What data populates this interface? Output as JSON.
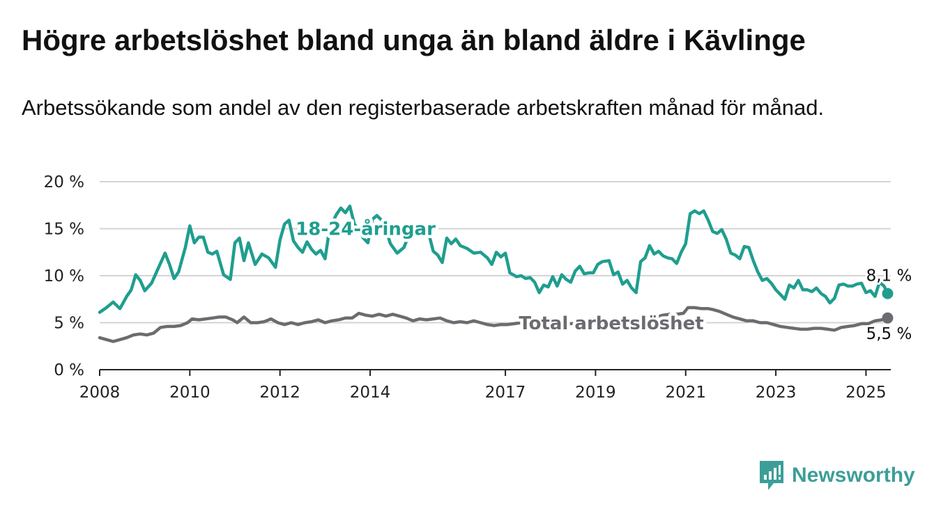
{
  "title": "Högre arbetslöshet bland unga än bland äldre i Kävlinge",
  "subtitle": "Arbetssökande som andel av den registerbaserade arbetskraften månad för månad.",
  "brand": {
    "name": "Newsworthy",
    "icon": "newsworthy-logo-icon",
    "color": "#3d9e98"
  },
  "chart_data": {
    "type": "line",
    "title": "Högre arbetslöshet bland unga än bland äldre i Kävlinge",
    "subtitle": "Arbetssökande som andel av den registerbaserade arbetskraften månad för månad.",
    "xlabel": "",
    "ylabel": "",
    "xlim": [
      2008,
      2025.55
    ],
    "ylim": [
      0,
      20
    ],
    "yticks": [
      0,
      5,
      10,
      15,
      20
    ],
    "ytick_labels": [
      "0 %",
      "5 %",
      "10 %",
      "15 %",
      "20 %"
    ],
    "xticks": [
      2008,
      2010,
      2012,
      2014,
      2017,
      2019,
      2021,
      2023,
      2025
    ],
    "xtick_labels": [
      "2008",
      "2010",
      "2012",
      "2014",
      "2017",
      "2019",
      "2021",
      "2023",
      "2025"
    ],
    "grid": "horizontal",
    "series": [
      {
        "name": "18-24-åringar",
        "color": "#1f9e8f",
        "end_label": "8,1 %",
        "end_value": 8.1,
        "points": [
          [
            2008.0,
            6.1
          ],
          [
            2008.15,
            6.6
          ],
          [
            2008.3,
            7.2
          ],
          [
            2008.45,
            6.5
          ],
          [
            2008.6,
            7.8
          ],
          [
            2008.7,
            8.5
          ],
          [
            2008.8,
            10.1
          ],
          [
            2008.9,
            9.5
          ],
          [
            2009.0,
            8.4
          ],
          [
            2009.15,
            9.2
          ],
          [
            2009.3,
            10.8
          ],
          [
            2009.45,
            12.4
          ],
          [
            2009.55,
            11.2
          ],
          [
            2009.65,
            9.7
          ],
          [
            2009.75,
            10.4
          ],
          [
            2009.9,
            13.0
          ],
          [
            2010.0,
            15.3
          ],
          [
            2010.1,
            13.5
          ],
          [
            2010.2,
            14.1
          ],
          [
            2010.3,
            14.1
          ],
          [
            2010.4,
            12.5
          ],
          [
            2010.5,
            12.3
          ],
          [
            2010.6,
            12.6
          ],
          [
            2010.75,
            10.1
          ],
          [
            2010.9,
            9.6
          ],
          [
            2011.0,
            13.5
          ],
          [
            2011.1,
            14.0
          ],
          [
            2011.2,
            11.6
          ],
          [
            2011.3,
            13.5
          ],
          [
            2011.45,
            11.2
          ],
          [
            2011.6,
            12.3
          ],
          [
            2011.75,
            11.9
          ],
          [
            2011.9,
            10.9
          ],
          [
            2012.0,
            13.8
          ],
          [
            2012.1,
            15.5
          ],
          [
            2012.2,
            15.9
          ],
          [
            2012.3,
            13.7
          ],
          [
            2012.4,
            13.0
          ],
          [
            2012.5,
            12.5
          ],
          [
            2012.6,
            13.6
          ],
          [
            2012.7,
            12.8
          ],
          [
            2012.8,
            12.3
          ],
          [
            2012.9,
            12.7
          ],
          [
            2013.0,
            11.8
          ],
          [
            2013.1,
            15.0
          ],
          [
            2013.25,
            16.5
          ],
          [
            2013.35,
            17.2
          ],
          [
            2013.45,
            16.7
          ],
          [
            2013.55,
            17.4
          ],
          [
            2013.65,
            15.5
          ],
          [
            2013.75,
            14.8
          ],
          [
            2013.85,
            14.0
          ],
          [
            2013.95,
            13.5
          ],
          [
            2014.05,
            16.0
          ],
          [
            2014.15,
            16.4
          ],
          [
            2014.3,
            15.7
          ],
          [
            2014.45,
            13.4
          ],
          [
            2014.6,
            12.4
          ],
          [
            2014.75,
            13.0
          ],
          [
            2014.9,
            14.8
          ],
          [
            2015.05,
            14.5
          ],
          [
            2015.15,
            14.7
          ],
          [
            2015.3,
            14.5
          ],
          [
            2015.4,
            12.6
          ],
          [
            2015.5,
            12.2
          ],
          [
            2015.6,
            11.4
          ],
          [
            2015.7,
            14.0
          ],
          [
            2015.8,
            13.4
          ],
          [
            2015.9,
            13.9
          ],
          [
            2016.0,
            13.2
          ],
          [
            2016.15,
            12.9
          ],
          [
            2016.3,
            12.4
          ],
          [
            2016.45,
            12.5
          ],
          [
            2016.6,
            11.9
          ],
          [
            2016.7,
            11.2
          ],
          [
            2016.8,
            12.5
          ],
          [
            2016.9,
            12.0
          ],
          [
            2017.0,
            12.4
          ],
          [
            2017.1,
            10.3
          ],
          [
            2017.25,
            9.9
          ],
          [
            2017.35,
            10.0
          ],
          [
            2017.45,
            9.7
          ],
          [
            2017.55,
            9.8
          ],
          [
            2017.65,
            9.3
          ],
          [
            2017.75,
            8.2
          ],
          [
            2017.85,
            9.0
          ],
          [
            2017.95,
            8.8
          ],
          [
            2018.05,
            9.9
          ],
          [
            2018.15,
            8.9
          ],
          [
            2018.25,
            10.1
          ],
          [
            2018.35,
            9.6
          ],
          [
            2018.45,
            9.3
          ],
          [
            2018.55,
            10.5
          ],
          [
            2018.65,
            11.0
          ],
          [
            2018.75,
            10.2
          ],
          [
            2018.85,
            10.3
          ],
          [
            2018.95,
            10.3
          ],
          [
            2019.05,
            11.2
          ],
          [
            2019.15,
            11.5
          ],
          [
            2019.3,
            11.6
          ],
          [
            2019.4,
            10.1
          ],
          [
            2019.5,
            10.4
          ],
          [
            2019.6,
            9.1
          ],
          [
            2019.7,
            9.5
          ],
          [
            2019.8,
            8.7
          ],
          [
            2019.9,
            8.2
          ],
          [
            2020.0,
            11.5
          ],
          [
            2020.1,
            11.9
          ],
          [
            2020.2,
            13.2
          ],
          [
            2020.3,
            12.3
          ],
          [
            2020.4,
            12.6
          ],
          [
            2020.5,
            12.1
          ],
          [
            2020.6,
            11.9
          ],
          [
            2020.7,
            11.8
          ],
          [
            2020.8,
            11.3
          ],
          [
            2020.9,
            12.5
          ],
          [
            2021.0,
            13.4
          ],
          [
            2021.1,
            16.6
          ],
          [
            2021.2,
            16.9
          ],
          [
            2021.3,
            16.6
          ],
          [
            2021.4,
            16.9
          ],
          [
            2021.5,
            15.9
          ],
          [
            2021.6,
            14.7
          ],
          [
            2021.7,
            14.5
          ],
          [
            2021.8,
            14.9
          ],
          [
            2021.9,
            13.9
          ],
          [
            2022.0,
            12.4
          ],
          [
            2022.1,
            12.2
          ],
          [
            2022.2,
            11.8
          ],
          [
            2022.3,
            13.1
          ],
          [
            2022.4,
            13.0
          ],
          [
            2022.5,
            11.6
          ],
          [
            2022.6,
            10.4
          ],
          [
            2022.7,
            9.5
          ],
          [
            2022.8,
            9.7
          ],
          [
            2022.9,
            9.2
          ],
          [
            2023.0,
            8.5
          ],
          [
            2023.1,
            8.0
          ],
          [
            2023.2,
            7.5
          ],
          [
            2023.3,
            9.0
          ],
          [
            2023.4,
            8.7
          ],
          [
            2023.5,
            9.5
          ],
          [
            2023.6,
            8.5
          ],
          [
            2023.7,
            8.5
          ],
          [
            2023.8,
            8.3
          ],
          [
            2023.9,
            8.7
          ],
          [
            2024.0,
            8.1
          ],
          [
            2024.1,
            7.8
          ],
          [
            2024.2,
            7.1
          ],
          [
            2024.3,
            7.6
          ],
          [
            2024.4,
            9.0
          ],
          [
            2024.5,
            9.1
          ],
          [
            2024.6,
            8.9
          ],
          [
            2024.7,
            8.9
          ],
          [
            2024.8,
            9.1
          ],
          [
            2024.9,
            9.2
          ],
          [
            2025.0,
            8.2
          ],
          [
            2025.1,
            8.4
          ],
          [
            2025.2,
            7.8
          ],
          [
            2025.3,
            9.3
          ],
          [
            2025.4,
            8.9
          ],
          [
            2025.48,
            8.1
          ]
        ]
      },
      {
        "name": "Total arbetslöshet",
        "color": "#6c6b70",
        "end_label": "5,5 %",
        "end_value": 5.5,
        "points": [
          [
            2008.0,
            3.4
          ],
          [
            2008.15,
            3.2
          ],
          [
            2008.3,
            3.0
          ],
          [
            2008.45,
            3.2
          ],
          [
            2008.6,
            3.4
          ],
          [
            2008.75,
            3.7
          ],
          [
            2008.9,
            3.8
          ],
          [
            2009.05,
            3.7
          ],
          [
            2009.2,
            3.9
          ],
          [
            2009.35,
            4.5
          ],
          [
            2009.5,
            4.6
          ],
          [
            2009.65,
            4.6
          ],
          [
            2009.8,
            4.7
          ],
          [
            2009.95,
            5.0
          ],
          [
            2010.05,
            5.4
          ],
          [
            2010.2,
            5.3
          ],
          [
            2010.35,
            5.4
          ],
          [
            2010.5,
            5.5
          ],
          [
            2010.65,
            5.6
          ],
          [
            2010.8,
            5.6
          ],
          [
            2010.95,
            5.3
          ],
          [
            2011.05,
            5.0
          ],
          [
            2011.2,
            5.6
          ],
          [
            2011.35,
            5.0
          ],
          [
            2011.5,
            5.0
          ],
          [
            2011.65,
            5.1
          ],
          [
            2011.8,
            5.4
          ],
          [
            2011.95,
            5.0
          ],
          [
            2012.1,
            4.8
          ],
          [
            2012.25,
            5.0
          ],
          [
            2012.4,
            4.8
          ],
          [
            2012.55,
            5.0
          ],
          [
            2012.7,
            5.1
          ],
          [
            2012.85,
            5.3
          ],
          [
            2013.0,
            5.0
          ],
          [
            2013.15,
            5.2
          ],
          [
            2013.3,
            5.3
          ],
          [
            2013.45,
            5.5
          ],
          [
            2013.6,
            5.5
          ],
          [
            2013.75,
            6.0
          ],
          [
            2013.9,
            5.8
          ],
          [
            2014.05,
            5.7
          ],
          [
            2014.2,
            5.9
          ],
          [
            2014.35,
            5.7
          ],
          [
            2014.5,
            5.9
          ],
          [
            2014.65,
            5.7
          ],
          [
            2014.8,
            5.5
          ],
          [
            2014.95,
            5.2
          ],
          [
            2015.1,
            5.4
          ],
          [
            2015.25,
            5.3
          ],
          [
            2015.4,
            5.4
          ],
          [
            2015.55,
            5.5
          ],
          [
            2015.7,
            5.2
          ],
          [
            2015.85,
            5.0
          ],
          [
            2016.0,
            5.1
          ],
          [
            2016.15,
            5.0
          ],
          [
            2016.3,
            5.2
          ],
          [
            2016.45,
            5.0
          ],
          [
            2016.6,
            4.8
          ],
          [
            2016.75,
            4.7
          ],
          [
            2016.9,
            4.8
          ],
          [
            2017.05,
            4.8
          ],
          [
            2017.2,
            4.9
          ],
          [
            2017.35,
            5.0
          ],
          [
            2017.5,
            5.0
          ],
          [
            2017.65,
            5.0
          ],
          [
            2017.8,
            4.9
          ],
          [
            2017.95,
            4.9
          ],
          [
            2018.1,
            5.0
          ],
          [
            2018.25,
            4.9
          ],
          [
            2018.4,
            4.9
          ],
          [
            2018.55,
            4.9
          ],
          [
            2018.7,
            5.0
          ],
          [
            2018.85,
            4.9
          ],
          [
            2019.0,
            4.9
          ],
          [
            2019.15,
            5.0
          ],
          [
            2019.3,
            5.0
          ],
          [
            2019.45,
            5.1
          ],
          [
            2019.6,
            5.0
          ],
          [
            2019.75,
            5.0
          ],
          [
            2019.9,
            4.9
          ],
          [
            2020.05,
            5.1
          ],
          [
            2020.2,
            5.4
          ],
          [
            2020.35,
            5.6
          ],
          [
            2020.5,
            5.8
          ],
          [
            2020.65,
            5.9
          ],
          [
            2020.8,
            5.9
          ],
          [
            2020.95,
            6.0
          ],
          [
            2021.05,
            6.6
          ],
          [
            2021.2,
            6.6
          ],
          [
            2021.35,
            6.5
          ],
          [
            2021.5,
            6.5
          ],
          [
            2021.6,
            6.4
          ],
          [
            2021.75,
            6.2
          ],
          [
            2021.9,
            5.9
          ],
          [
            2022.05,
            5.6
          ],
          [
            2022.2,
            5.4
          ],
          [
            2022.35,
            5.2
          ],
          [
            2022.5,
            5.2
          ],
          [
            2022.65,
            5.0
          ],
          [
            2022.8,
            5.0
          ],
          [
            2022.95,
            4.8
          ],
          [
            2023.1,
            4.6
          ],
          [
            2023.25,
            4.5
          ],
          [
            2023.4,
            4.4
          ],
          [
            2023.55,
            4.3
          ],
          [
            2023.7,
            4.3
          ],
          [
            2023.85,
            4.4
          ],
          [
            2024.0,
            4.4
          ],
          [
            2024.15,
            4.3
          ],
          [
            2024.3,
            4.2
          ],
          [
            2024.45,
            4.5
          ],
          [
            2024.6,
            4.6
          ],
          [
            2024.75,
            4.7
          ],
          [
            2024.9,
            4.9
          ],
          [
            2025.05,
            4.9
          ],
          [
            2025.2,
            5.2
          ],
          [
            2025.35,
            5.3
          ],
          [
            2025.48,
            5.5
          ]
        ]
      }
    ]
  }
}
